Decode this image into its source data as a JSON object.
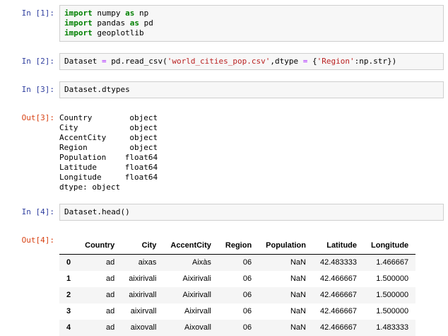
{
  "notebook": {
    "colors": {
      "prompt_in": "#303f9f",
      "prompt_out": "#d84315",
      "keyword": "#008000",
      "operator": "#aa22ff",
      "string": "#ba2121",
      "cell_bg": "#f7f7f7",
      "cell_border": "#cfcfcf",
      "row_stripe": "#f5f5f5"
    },
    "cells": [
      {
        "prompt": "In [1]:",
        "code": [
          [
            [
              "kw",
              "import"
            ],
            [
              "pl",
              " numpy "
            ],
            [
              "kw",
              "as"
            ],
            [
              "pl",
              " np"
            ]
          ],
          [
            [
              "kw",
              "import"
            ],
            [
              "pl",
              " pandas "
            ],
            [
              "kw",
              "as"
            ],
            [
              "pl",
              " pd"
            ]
          ],
          [
            [
              "kw",
              "import"
            ],
            [
              "pl",
              " geoplotlib"
            ]
          ]
        ]
      },
      {
        "prompt": "In [2]:",
        "code": [
          [
            [
              "pl",
              "Dataset "
            ],
            [
              "op",
              "="
            ],
            [
              "pl",
              " pd.read_csv("
            ],
            [
              "str",
              "'world_cities_pop.csv'"
            ],
            [
              "pl",
              ",dtype "
            ],
            [
              "op",
              "="
            ],
            [
              "pl",
              " {"
            ],
            [
              "str",
              "'Region'"
            ],
            [
              "pl",
              ":np.str})"
            ]
          ]
        ]
      },
      {
        "prompt": "In [3]:",
        "code": [
          [
            [
              "pl",
              "Dataset.dtypes"
            ]
          ]
        ]
      },
      {
        "prompt": "Out[3]:",
        "lines": [
          "Country        object",
          "City           object",
          "AccentCity     object",
          "Region         object",
          "Population    float64",
          "Latitude      float64",
          "Longitude     float64",
          "dtype: object"
        ]
      },
      {
        "prompt": "In [4]:",
        "code": [
          [
            [
              "pl",
              "Dataset.head()"
            ]
          ]
        ]
      },
      {
        "prompt": "Out[4]:",
        "table": {
          "columns": [
            "",
            "Country",
            "City",
            "AccentCity",
            "Region",
            "Population",
            "Latitude",
            "Longitude"
          ],
          "rows": [
            [
              "0",
              "ad",
              "aixas",
              "Aixàs",
              "06",
              "NaN",
              "42.483333",
              "1.466667"
            ],
            [
              "1",
              "ad",
              "aixirivali",
              "Aixirivali",
              "06",
              "NaN",
              "42.466667",
              "1.500000"
            ],
            [
              "2",
              "ad",
              "aixirivall",
              "Aixirivall",
              "06",
              "NaN",
              "42.466667",
              "1.500000"
            ],
            [
              "3",
              "ad",
              "aixirvall",
              "Aixirvall",
              "06",
              "NaN",
              "42.466667",
              "1.500000"
            ],
            [
              "4",
              "ad",
              "aixovall",
              "Aixovall",
              "06",
              "NaN",
              "42.466667",
              "1.483333"
            ]
          ]
        }
      }
    ]
  }
}
